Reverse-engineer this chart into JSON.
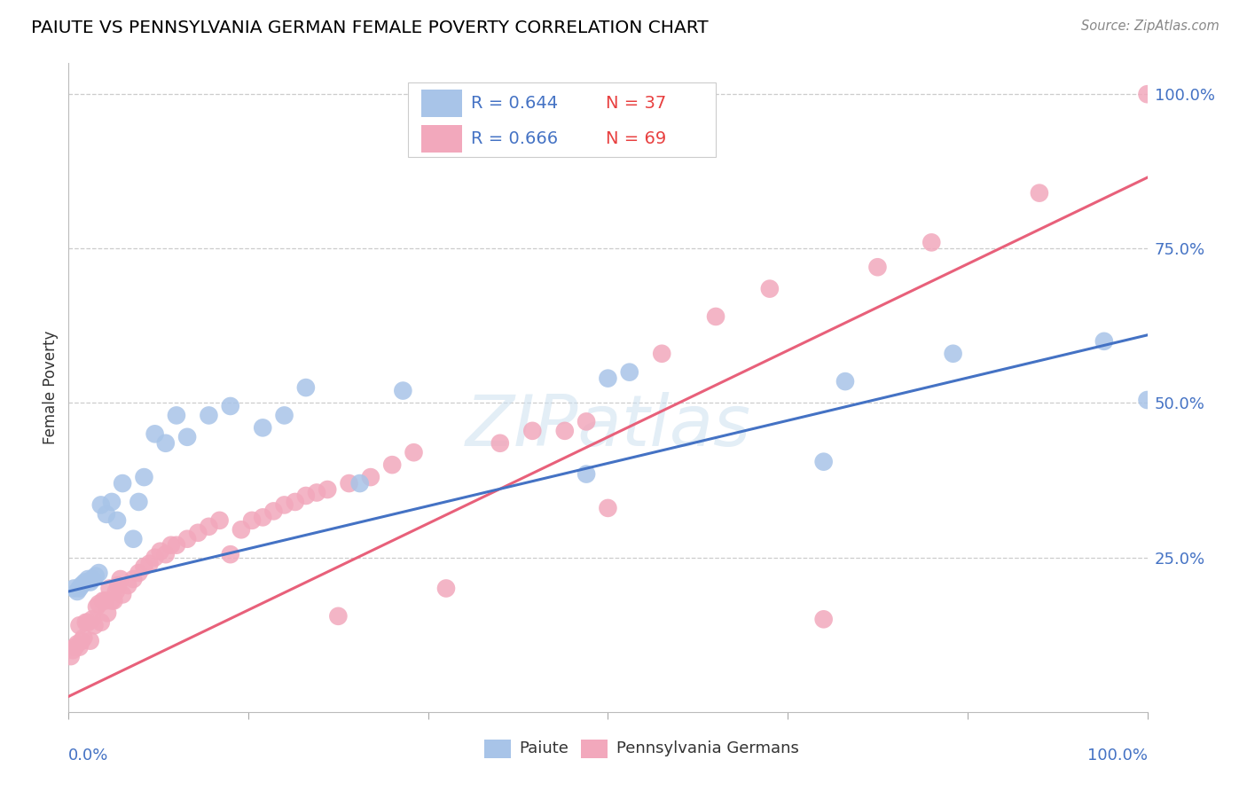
{
  "title": "PAIUTE VS PENNSYLVANIA GERMAN FEMALE POVERTY CORRELATION CHART",
  "source": "Source: ZipAtlas.com",
  "ylabel": "Female Poverty",
  "legend_label_paiute": "Paiute",
  "legend_label_pg": "Pennsylvania Germans",
  "paiute_color": "#a8c4e8",
  "pg_color": "#f2a8bc",
  "paiute_line_color": "#4472c4",
  "pg_line_color": "#e8607a",
  "R_color": "#4472c4",
  "N_color": "#e84040",
  "watermark_color": "#ccddf0",
  "background_color": "#ffffff",
  "grid_color": "#cccccc",
  "axis_label_color": "#4472c4",
  "paiute_R": 0.644,
  "paiute_N": 37,
  "pg_R": 0.666,
  "pg_N": 69,
  "paiute_intercept": 0.195,
  "paiute_slope": 0.415,
  "pg_intercept": 0.025,
  "pg_slope": 0.84,
  "paiute_x": [
    0.005,
    0.008,
    0.01,
    0.012,
    0.015,
    0.018,
    0.02,
    0.022,
    0.025,
    0.028,
    0.03,
    0.035,
    0.04,
    0.045,
    0.05,
    0.06,
    0.065,
    0.07,
    0.08,
    0.09,
    0.1,
    0.11,
    0.13,
    0.15,
    0.18,
    0.2,
    0.22,
    0.27,
    0.31,
    0.48,
    0.5,
    0.52,
    0.7,
    0.72,
    0.82,
    0.96,
    1.0
  ],
  "paiute_y": [
    0.2,
    0.195,
    0.2,
    0.205,
    0.21,
    0.215,
    0.21,
    0.215,
    0.22,
    0.225,
    0.335,
    0.32,
    0.34,
    0.31,
    0.37,
    0.28,
    0.34,
    0.38,
    0.45,
    0.435,
    0.48,
    0.445,
    0.48,
    0.495,
    0.46,
    0.48,
    0.525,
    0.37,
    0.52,
    0.385,
    0.54,
    0.55,
    0.405,
    0.535,
    0.58,
    0.6,
    0.505
  ],
  "pg_x": [
    0.002,
    0.004,
    0.006,
    0.008,
    0.01,
    0.01,
    0.012,
    0.014,
    0.016,
    0.018,
    0.02,
    0.022,
    0.024,
    0.026,
    0.028,
    0.03,
    0.032,
    0.034,
    0.036,
    0.038,
    0.04,
    0.042,
    0.044,
    0.046,
    0.048,
    0.05,
    0.055,
    0.06,
    0.065,
    0.07,
    0.075,
    0.08,
    0.085,
    0.09,
    0.095,
    0.1,
    0.11,
    0.12,
    0.13,
    0.14,
    0.15,
    0.16,
    0.17,
    0.18,
    0.19,
    0.2,
    0.21,
    0.22,
    0.23,
    0.24,
    0.25,
    0.26,
    0.28,
    0.3,
    0.32,
    0.35,
    0.4,
    0.43,
    0.46,
    0.48,
    0.5,
    0.55,
    0.6,
    0.65,
    0.7,
    0.75,
    0.8,
    0.9,
    1.0
  ],
  "pg_y": [
    0.09,
    0.1,
    0.105,
    0.11,
    0.105,
    0.14,
    0.115,
    0.12,
    0.145,
    0.145,
    0.115,
    0.15,
    0.14,
    0.17,
    0.175,
    0.145,
    0.18,
    0.18,
    0.16,
    0.2,
    0.18,
    0.18,
    0.195,
    0.205,
    0.215,
    0.19,
    0.205,
    0.215,
    0.225,
    0.235,
    0.24,
    0.25,
    0.26,
    0.255,
    0.27,
    0.27,
    0.28,
    0.29,
    0.3,
    0.31,
    0.255,
    0.295,
    0.31,
    0.315,
    0.325,
    0.335,
    0.34,
    0.35,
    0.355,
    0.36,
    0.155,
    0.37,
    0.38,
    0.4,
    0.42,
    0.2,
    0.435,
    0.455,
    0.455,
    0.47,
    0.33,
    0.58,
    0.64,
    0.685,
    0.15,
    0.72,
    0.76,
    0.84,
    1.0
  ],
  "xlim": [
    0.0,
    1.0
  ],
  "ylim": [
    0.0,
    1.05
  ],
  "yticks": [
    0.0,
    0.25,
    0.5,
    0.75,
    1.0
  ],
  "ytick_labels": [
    "",
    "25.0%",
    "50.0%",
    "75.0%",
    "100.0%"
  ],
  "xtick_label_left": "0.0%",
  "xtick_label_right": "100.0%"
}
